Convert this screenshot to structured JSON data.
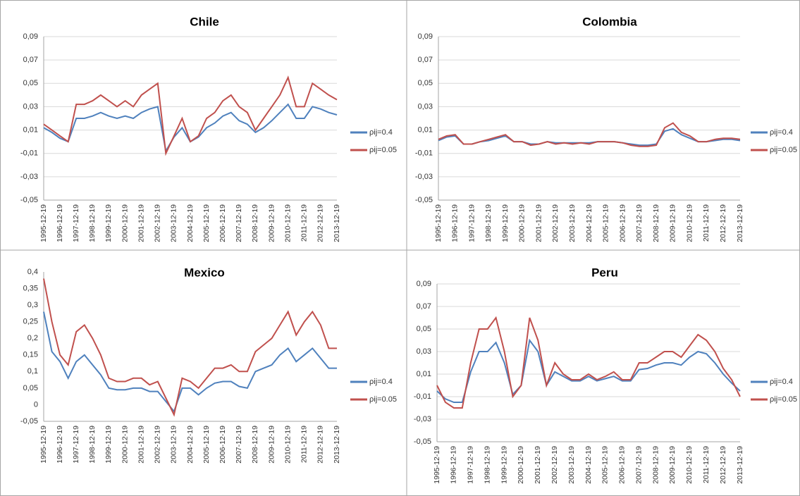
{
  "chart_data": [
    {
      "type": "line",
      "title": "Chile",
      "categories": [
        "1995-12-19",
        null,
        "1996-12-19",
        null,
        "1997-12-19",
        null,
        "1998-12-19",
        null,
        "1999-12-19",
        null,
        "2000-12-19",
        null,
        "2001-12-19",
        null,
        "2002-12-19",
        null,
        "2003-12-19",
        null,
        "2004-12-19",
        null,
        "2005-12-19",
        null,
        "2006-12-19",
        null,
        "2007-12-19",
        null,
        "2008-12-19",
        null,
        "2009-12-19",
        null,
        "2010-12-19",
        null,
        "2011-12-19",
        null,
        "2012-12-19",
        null,
        "2013-12-19"
      ],
      "series": [
        {
          "name": "ρij=0.4",
          "color": "#4f81bd",
          "values": [
            0.012,
            0.008,
            0.003,
            0.0,
            0.02,
            0.02,
            0.022,
            0.025,
            0.022,
            0.02,
            0.022,
            0.02,
            0.025,
            0.028,
            0.03,
            -0.008,
            0.004,
            0.012,
            0.0,
            0.004,
            0.012,
            0.016,
            0.022,
            0.025,
            0.018,
            0.015,
            0.008,
            0.012,
            0.018,
            0.025,
            0.032,
            0.02,
            0.02,
            0.03,
            0.028,
            0.025,
            0.023
          ]
        },
        {
          "name": "ρij=0.05",
          "color": "#c0504d",
          "values": [
            0.015,
            0.01,
            0.005,
            0.0,
            0.032,
            0.032,
            0.035,
            0.04,
            0.035,
            0.03,
            0.035,
            0.03,
            0.04,
            0.045,
            0.05,
            -0.01,
            0.005,
            0.02,
            0.0,
            0.005,
            0.02,
            0.025,
            0.035,
            0.04,
            0.03,
            0.025,
            0.01,
            0.02,
            0.03,
            0.04,
            0.055,
            0.03,
            0.03,
            0.05,
            0.045,
            0.04,
            0.036
          ]
        }
      ],
      "ylim": [
        -0.05,
        0.09
      ],
      "yticks": [
        {
          "value": -0.05,
          "label": "-0,05"
        },
        {
          "value": -0.03,
          "label": "-0,03"
        },
        {
          "value": -0.01,
          "label": "-0,01"
        },
        {
          "value": 0.01,
          "label": "0,01"
        },
        {
          "value": 0.03,
          "label": "0,03"
        },
        {
          "value": 0.05,
          "label": "0,05"
        },
        {
          "value": 0.07,
          "label": "0,07"
        },
        {
          "value": 0.09,
          "label": "0,09"
        }
      ],
      "grid": true
    },
    {
      "type": "line",
      "title": "Colombia",
      "categories": [
        "1995-12-19",
        null,
        "1996-12-19",
        null,
        "1997-12-19",
        null,
        "1998-12-19",
        null,
        "1999-12-19",
        null,
        "2000-12-19",
        null,
        "2001-12-19",
        null,
        "2002-12-19",
        null,
        "2003-12-19",
        null,
        "2004-12-19",
        null,
        "2005-12-19",
        null,
        "2006-12-19",
        null,
        "2007-12-19",
        null,
        "2008-12-19",
        null,
        "2009-12-19",
        null,
        "2010-12-19",
        null,
        "2011-12-19",
        null,
        "2012-12-19",
        null,
        "2013-12-19"
      ],
      "series": [
        {
          "name": "ρij=0.4",
          "color": "#4f81bd",
          "values": [
            0.001,
            0.004,
            0.005,
            -0.002,
            -0.002,
            0.0,
            0.001,
            0.003,
            0.005,
            0.0,
            0.0,
            -0.002,
            -0.002,
            0.0,
            -0.001,
            -0.001,
            -0.001,
            -0.001,
            -0.001,
            0.0,
            0.0,
            0.0,
            -0.001,
            -0.002,
            -0.003,
            -0.003,
            -0.002,
            0.009,
            0.011,
            0.006,
            0.003,
            0.0,
            0.0,
            0.001,
            0.002,
            0.002,
            0.001
          ]
        },
        {
          "name": "ρij=0.05",
          "color": "#c0504d",
          "values": [
            0.002,
            0.005,
            0.006,
            -0.002,
            -0.002,
            0.0,
            0.002,
            0.004,
            0.006,
            0.0,
            0.0,
            -0.003,
            -0.002,
            0.0,
            -0.002,
            -0.001,
            -0.002,
            -0.001,
            -0.002,
            0.0,
            0.0,
            0.0,
            -0.001,
            -0.003,
            -0.004,
            -0.004,
            -0.003,
            0.012,
            0.016,
            0.008,
            0.005,
            0.0,
            0.0,
            0.002,
            0.003,
            0.003,
            0.002
          ]
        }
      ],
      "ylim": [
        -0.05,
        0.09
      ],
      "yticks": [
        {
          "value": -0.05,
          "label": "-0,05"
        },
        {
          "value": -0.03,
          "label": "-0,03"
        },
        {
          "value": -0.01,
          "label": "-0,01"
        },
        {
          "value": 0.01,
          "label": "0,01"
        },
        {
          "value": 0.03,
          "label": "0,03"
        },
        {
          "value": 0.05,
          "label": "0,05"
        },
        {
          "value": 0.07,
          "label": "0,07"
        },
        {
          "value": 0.09,
          "label": "0,09"
        }
      ],
      "grid": true
    },
    {
      "type": "line",
      "title": "Mexico",
      "categories": [
        "1995-12-19",
        null,
        "1996-12-19",
        null,
        "1997-12-19",
        null,
        "1998-12-19",
        null,
        "1999-12-19",
        null,
        "2000-12-19",
        null,
        "2001-12-19",
        null,
        "2002-12-19",
        null,
        "2003-12-19",
        null,
        "2004-12-19",
        null,
        "2005-12-19",
        null,
        "2006-12-19",
        null,
        "2007-12-19",
        null,
        "2008-12-19",
        null,
        "2009-12-19",
        null,
        "2010-12-19",
        null,
        "2011-12-19",
        null,
        "2012-12-19",
        null,
        "2013-12-19"
      ],
      "series": [
        {
          "name": "ρij=0.4",
          "color": "#4f81bd",
          "values": [
            0.28,
            0.16,
            0.13,
            0.08,
            0.13,
            0.15,
            0.12,
            0.09,
            0.05,
            0.045,
            0.045,
            0.05,
            0.05,
            0.04,
            0.04,
            0.01,
            -0.02,
            0.05,
            0.05,
            0.03,
            0.05,
            0.065,
            0.07,
            0.07,
            0.055,
            0.05,
            0.1,
            0.11,
            0.12,
            0.15,
            0.17,
            0.13,
            0.15,
            0.17,
            0.14,
            0.11,
            0.11
          ]
        },
        {
          "name": "ρij=0.05",
          "color": "#c0504d",
          "values": [
            0.38,
            0.25,
            0.15,
            0.12,
            0.22,
            0.24,
            0.2,
            0.15,
            0.08,
            0.07,
            0.07,
            0.08,
            0.08,
            0.06,
            0.07,
            0.02,
            -0.03,
            0.08,
            0.07,
            0.05,
            0.08,
            0.11,
            0.11,
            0.12,
            0.1,
            0.1,
            0.16,
            0.18,
            0.2,
            0.24,
            0.28,
            0.21,
            0.25,
            0.28,
            0.24,
            0.17,
            0.17
          ]
        }
      ],
      "ylim": [
        -0.05,
        0.4
      ],
      "yticks": [
        {
          "value": -0.05,
          "label": "-0,05"
        },
        0,
        {
          "value": 0.05,
          "label": "0,05"
        },
        {
          "value": 0.1,
          "label": "0,1"
        },
        {
          "value": 0.15,
          "label": "0,15"
        },
        {
          "value": 0.2,
          "label": "0,2"
        },
        {
          "value": 0.25,
          "label": "0,25"
        },
        {
          "value": 0.3,
          "label": "0,3"
        },
        {
          "value": 0.35,
          "label": "0,35"
        },
        {
          "value": 0.4,
          "label": "0,4"
        }
      ],
      "grid": false
    },
    {
      "type": "line",
      "title": "Peru",
      "categories": [
        "1995-12-19",
        null,
        "1996-12-19",
        null,
        "1997-12-19",
        null,
        "1998-12-19",
        null,
        "1999-12-19",
        null,
        "2000-12-19",
        null,
        "2001-12-19",
        null,
        "2002-12-19",
        null,
        "2003-12-19",
        null,
        "2004-12-19",
        null,
        "2005-12-19",
        null,
        "2006-12-19",
        null,
        "2007-12-19",
        null,
        "2008-12-19",
        null,
        "2009-12-19",
        null,
        "2010-12-19",
        null,
        "2011-12-19",
        null,
        "2012-12-19",
        null,
        "2013-12-19"
      ],
      "series": [
        {
          "name": "ρij=0.4",
          "color": "#4f81bd",
          "values": [
            -0.005,
            -0.012,
            -0.015,
            -0.015,
            0.012,
            0.03,
            0.03,
            0.038,
            0.02,
            -0.008,
            0.0,
            0.04,
            0.03,
            0.0,
            0.012,
            0.008,
            0.004,
            0.004,
            0.008,
            0.004,
            0.006,
            0.008,
            0.004,
            0.004,
            0.014,
            0.015,
            0.018,
            0.02,
            0.02,
            0.018,
            0.025,
            0.03,
            0.028,
            0.02,
            0.01,
            0.002,
            -0.005
          ]
        },
        {
          "name": "ρij=0.05",
          "color": "#c0504d",
          "values": [
            0.0,
            -0.015,
            -0.02,
            -0.02,
            0.02,
            0.05,
            0.05,
            0.06,
            0.03,
            -0.01,
            0.0,
            0.06,
            0.04,
            0.0,
            0.02,
            0.01,
            0.005,
            0.005,
            0.01,
            0.005,
            0.008,
            0.012,
            0.005,
            0.005,
            0.02,
            0.02,
            0.025,
            0.03,
            0.03,
            0.025,
            0.035,
            0.045,
            0.04,
            0.03,
            0.015,
            0.005,
            -0.01
          ]
        }
      ],
      "ylim": [
        -0.05,
        0.09
      ],
      "yticks": [
        {
          "value": -0.05,
          "label": "-0,05"
        },
        {
          "value": -0.03,
          "label": "-0,03"
        },
        {
          "value": -0.01,
          "label": "-0,01"
        },
        {
          "value": 0.01,
          "label": "0,01"
        },
        {
          "value": 0.03,
          "label": "0,03"
        },
        {
          "value": 0.05,
          "label": "0,05"
        },
        {
          "value": 0.07,
          "label": "0,07"
        },
        {
          "value": 0.09,
          "label": "0,09"
        }
      ],
      "grid": true
    }
  ]
}
